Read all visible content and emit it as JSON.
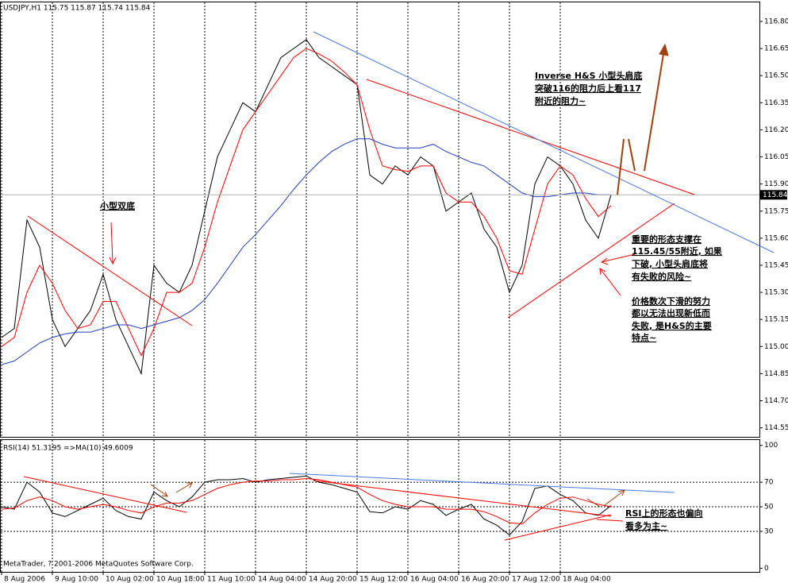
{
  "chart_data": [
    {
      "type": "line",
      "title": "USDJPY,H1  115.75 115.87 115.74 115.84",
      "categories": [
        "8 Aug 2006",
        null,
        null,
        null,
        "9 Aug 10:00",
        null,
        null,
        null,
        "10 Aug 02:00",
        null,
        null,
        null,
        "10 Aug 18:00",
        null,
        null,
        null,
        "11 Aug 10:00",
        null,
        null,
        null,
        "14 Aug 04:00",
        null,
        null,
        null,
        "14 Aug 20:00",
        null,
        null,
        null,
        "15 Aug 12:00",
        null,
        null,
        null,
        "16 Aug 04:00",
        null,
        null,
        null,
        "16 Aug 20:00",
        null,
        null,
        null,
        "17 Aug 12:00",
        null,
        null,
        null,
        "18 Aug 04:00",
        null,
        null,
        null,
        null
      ],
      "series": [
        {
          "color": "#000000",
          "values": [
            115.05,
            115.1,
            115.7,
            115.55,
            115.15,
            115.0,
            115.1,
            115.2,
            115.4,
            115.15,
            115.0,
            114.85,
            115.45,
            115.35,
            115.3,
            115.45,
            115.75,
            116.05,
            116.2,
            116.35,
            116.3,
            116.45,
            116.6,
            116.65,
            116.7,
            116.6,
            116.55,
            116.5,
            116.45,
            115.95,
            115.9,
            116.0,
            115.95,
            116.05,
            116.0,
            115.75,
            115.8,
            115.85,
            115.65,
            115.55,
            115.3,
            115.45,
            115.9,
            116.05,
            116.0,
            115.9,
            115.7,
            115.6,
            115.84
          ]
        },
        {
          "color": "#ff0000",
          "values": [
            115.0,
            115.05,
            115.3,
            115.45,
            115.35,
            115.2,
            115.1,
            115.12,
            115.25,
            115.25,
            115.1,
            114.95,
            115.1,
            115.3,
            115.3,
            115.35,
            115.55,
            115.8,
            116.0,
            116.2,
            116.3,
            116.4,
            116.5,
            116.6,
            116.65,
            116.62,
            116.58,
            116.52,
            116.45,
            116.2,
            116.0,
            115.98,
            115.97,
            116.0,
            116.0,
            115.85,
            115.8,
            115.8,
            115.72,
            115.6,
            115.42,
            115.4,
            115.65,
            115.9,
            116.0,
            115.95,
            115.82,
            115.72,
            115.78
          ]
        },
        {
          "color": "#1f3fbf",
          "values": [
            114.9,
            114.92,
            114.97,
            115.02,
            115.05,
            115.07,
            115.08,
            115.08,
            115.1,
            115.12,
            115.12,
            115.1,
            115.12,
            115.14,
            115.16,
            115.2,
            115.26,
            115.35,
            115.45,
            115.55,
            115.62,
            115.7,
            115.78,
            115.87,
            115.95,
            116.02,
            116.08,
            116.12,
            116.15,
            116.15,
            116.12,
            116.1,
            116.1,
            116.1,
            116.12,
            116.08,
            116.05,
            116.02,
            116.0,
            115.95,
            115.9,
            115.85,
            115.83,
            115.83,
            115.84,
            115.85,
            115.85,
            115.84,
            115.84
          ]
        }
      ],
      "ylim": [
        114.5,
        116.91
      ],
      "yticks": [
        {
          "value": 114.55,
          "label": "114.55"
        },
        {
          "value": 114.7,
          "label": "114.70"
        },
        114.85,
        {
          "value": 115.0,
          "label": "115.00"
        },
        115.15,
        {
          "value": 115.3,
          "label": "115.30"
        },
        115.45,
        {
          "value": 115.6,
          "label": "115.60"
        },
        115.75,
        {
          "value": 115.9,
          "label": "115.90"
        },
        116.05,
        {
          "value": 116.2,
          "label": "116.20"
        },
        116.35,
        {
          "value": 116.5,
          "label": "116.50"
        },
        116.65,
        {
          "value": 116.8,
          "label": "116.80"
        }
      ],
      "last_price": 115.84,
      "annotations": [
        "Inverse H&S 小型头肩底",
        "突破116的阻力后上看117",
        "附近的阻力~",
        "小型双底",
        "重要的形态支撑在",
        "115.45/55附近, 如果",
        "下破, 小型头肩底将",
        "有失败的风险~",
        "价格数次下滑的努力",
        "都以无法出现新低而",
        "失败, 是H&S的主要",
        "特点~"
      ]
    },
    {
      "type": "line",
      "title": "RSI(14) 51.3195  =>MA(10) 49.6009",
      "series": [
        {
          "color": "#000000",
          "values": [
            50,
            48,
            70,
            62,
            45,
            42,
            47,
            52,
            57,
            47,
            42,
            40,
            62,
            55,
            50,
            58,
            70,
            72,
            72,
            73,
            70,
            72,
            73,
            74,
            75,
            70,
            68,
            65,
            62,
            46,
            45,
            50,
            48,
            55,
            52,
            43,
            48,
            52,
            40,
            35,
            27,
            38,
            65,
            67,
            60,
            55,
            45,
            43,
            51
          ]
        },
        {
          "color": "#ff0000",
          "values": [
            48,
            49,
            55,
            58,
            55,
            50,
            48,
            50,
            52,
            50,
            47,
            45,
            50,
            53,
            53,
            55,
            60,
            65,
            68,
            70,
            71,
            71,
            72,
            72,
            73,
            72,
            70,
            68,
            66,
            60,
            55,
            52,
            50,
            50,
            50,
            48,
            48,
            48,
            46,
            42,
            37,
            36,
            45,
            52,
            57,
            58,
            55,
            52,
            50
          ]
        }
      ],
      "ylim": [
        -3,
        105
      ],
      "yticks": [
        0,
        30,
        50,
        70,
        100
      ],
      "annotations": [
        "RSI上的形态也偏向",
        "看多为主~"
      ],
      "footer": "MetaTrader, ? 2001-2006 MetaQuotes Software Corp."
    }
  ]
}
